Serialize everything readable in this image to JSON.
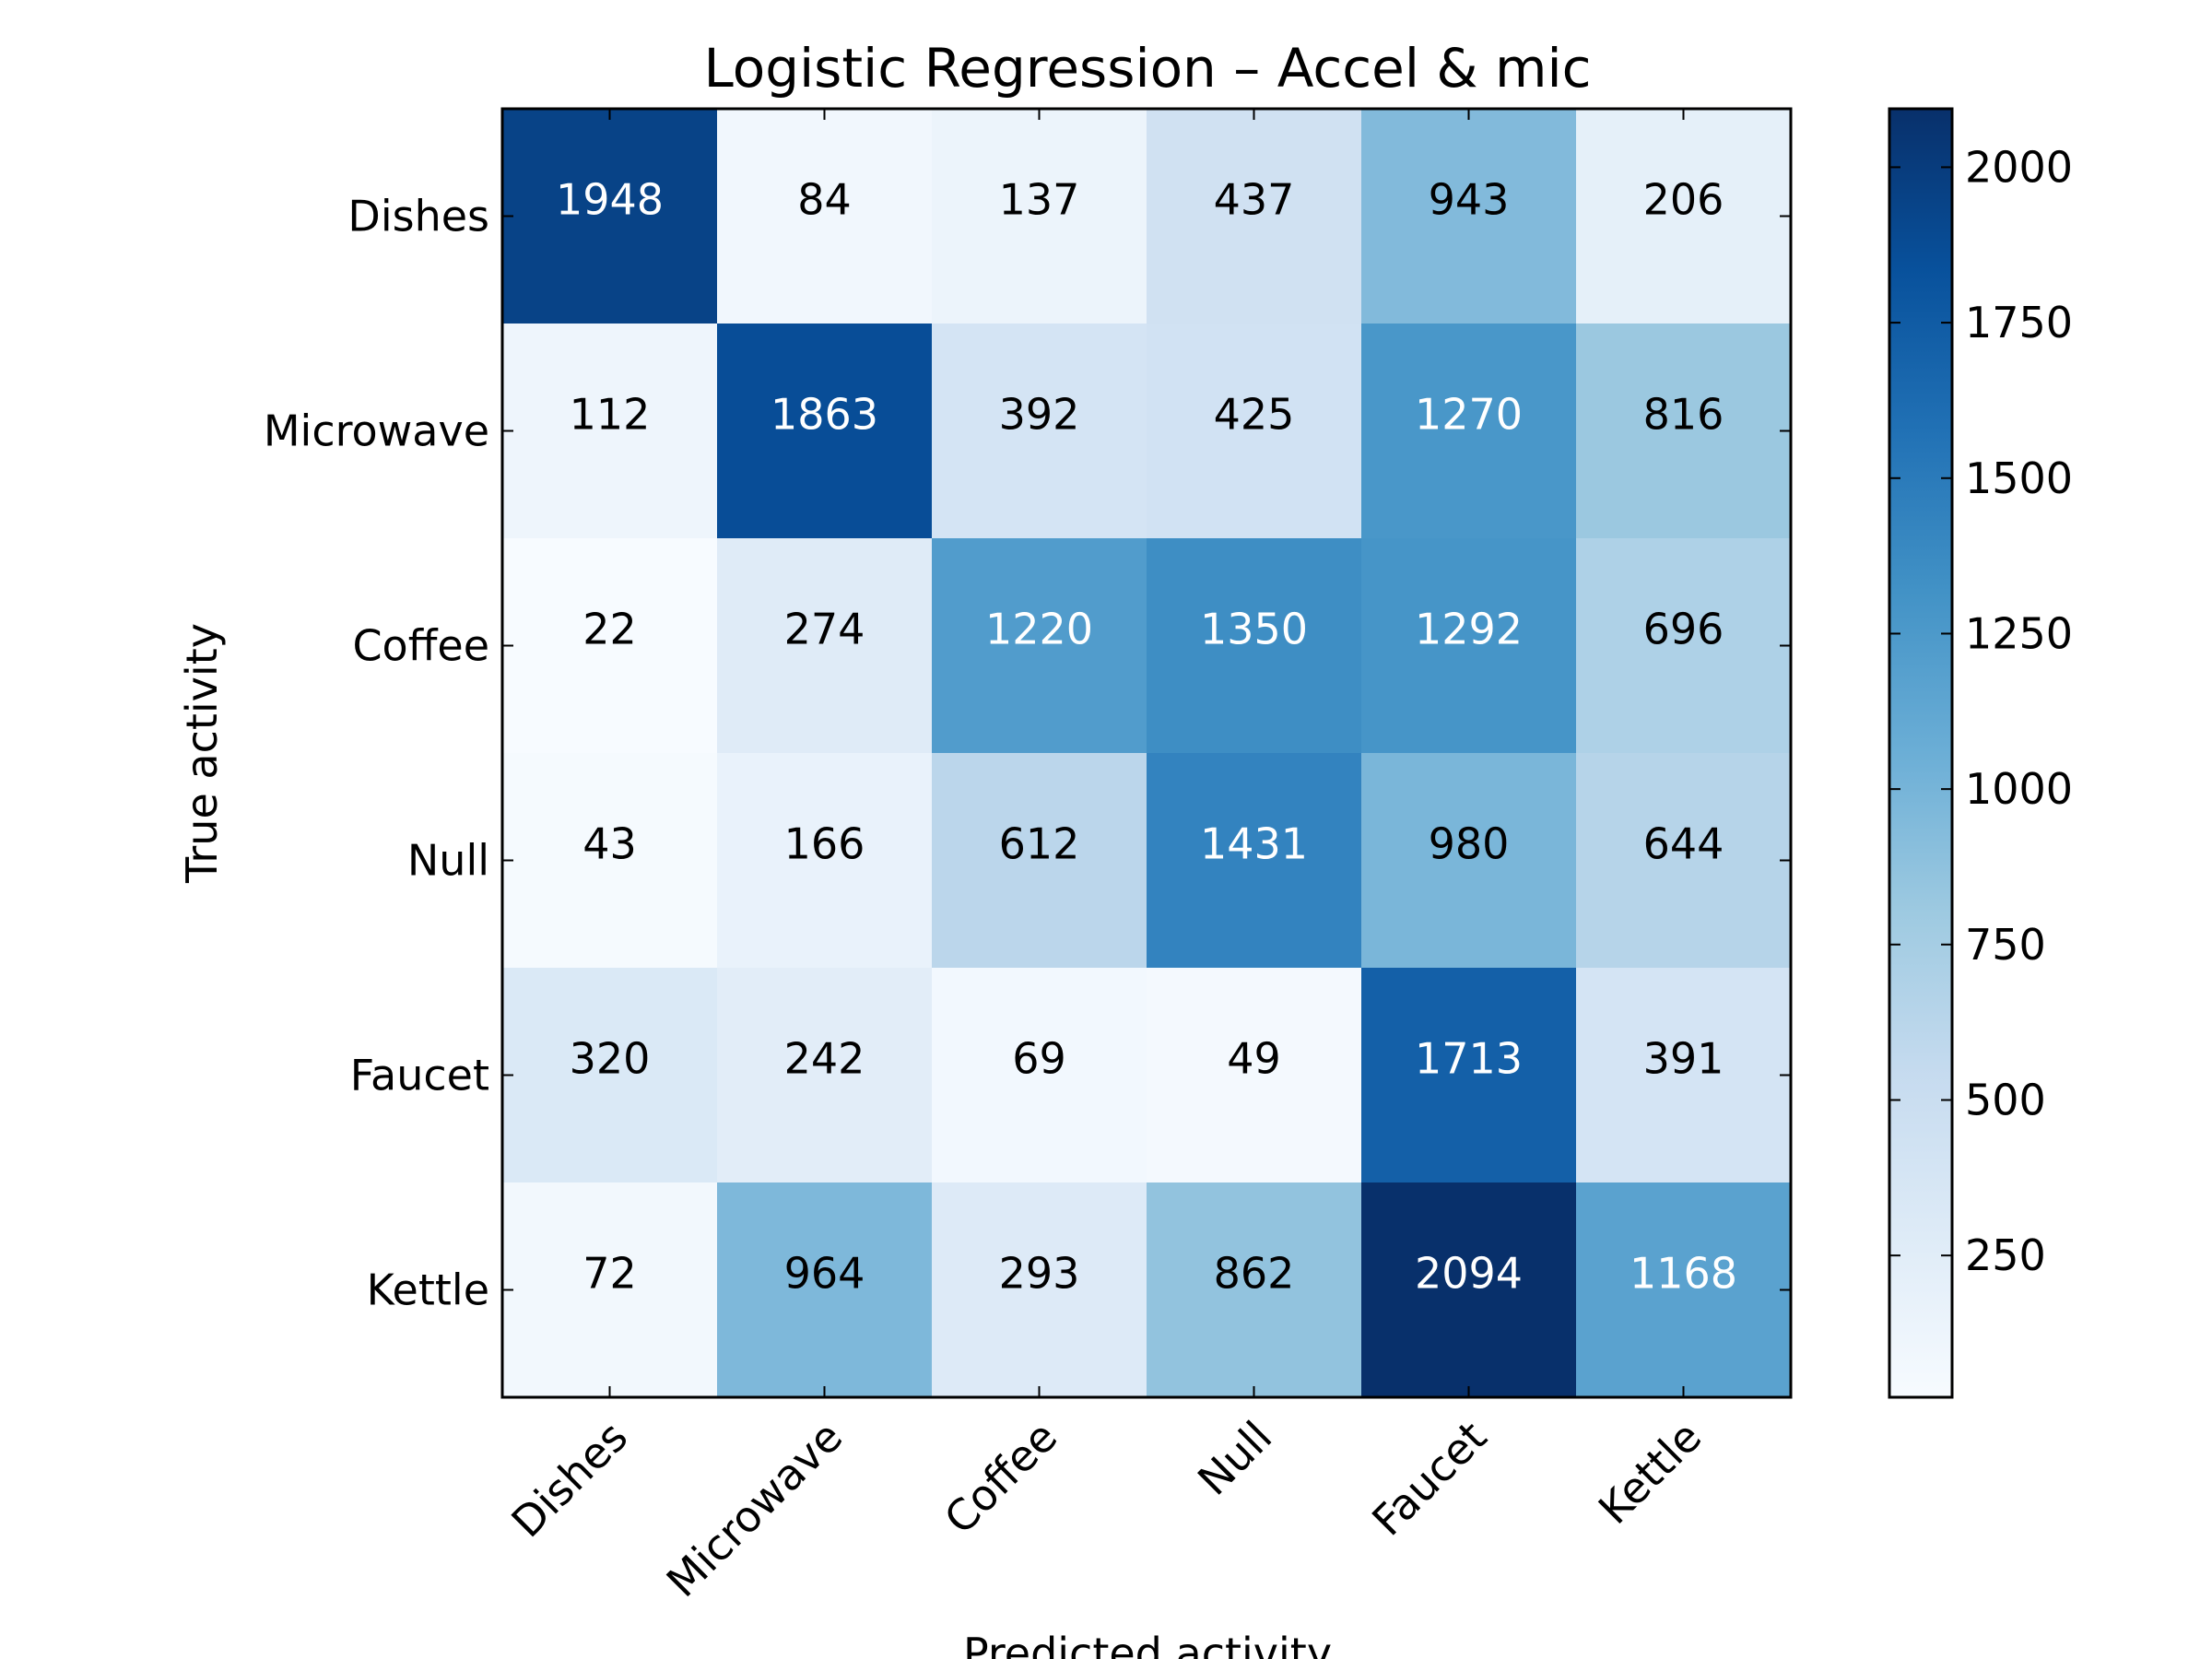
{
  "chart_data": {
    "type": "heatmap",
    "title": "Logistic Regression – Accel & mic",
    "xlabel": "Predicted activity",
    "ylabel": "True activity",
    "x_categories": [
      "Dishes",
      "Microwave",
      "Coffee",
      "Null",
      "Faucet",
      "Kettle"
    ],
    "y_categories": [
      "Dishes",
      "Microwave",
      "Coffee",
      "Null",
      "Faucet",
      "Kettle"
    ],
    "values": [
      [
        1948,
        84,
        137,
        437,
        943,
        206
      ],
      [
        112,
        1863,
        392,
        425,
        1270,
        816
      ],
      [
        22,
        274,
        1220,
        1350,
        1292,
        696
      ],
      [
        43,
        166,
        612,
        1431,
        980,
        644
      ],
      [
        320,
        242,
        69,
        49,
        1713,
        391
      ],
      [
        72,
        964,
        293,
        862,
        2094,
        1168
      ]
    ],
    "colorbar": {
      "min": 22,
      "max": 2094,
      "ticks": [
        250,
        500,
        750,
        1000,
        1250,
        1500,
        1750,
        2000
      ],
      "colormap": "Blues"
    }
  }
}
